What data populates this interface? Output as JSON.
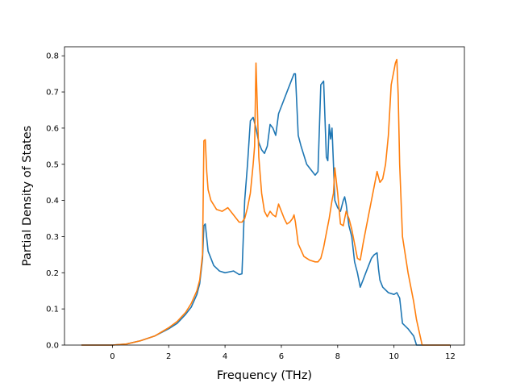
{
  "chart_data": {
    "type": "line",
    "title": "",
    "xlabel": "Frequency (THz)",
    "ylabel": "Partial Density of States",
    "xlim": [
      -1.7,
      12.5
    ],
    "ylim": [
      0,
      0.825
    ],
    "xticks": [
      0,
      2,
      4,
      6,
      8,
      10,
      12
    ],
    "yticks": [
      0.0,
      0.1,
      0.2,
      0.3,
      0.4,
      0.5,
      0.6,
      0.7,
      0.8
    ],
    "grid": false,
    "legend": "none",
    "series": [
      {
        "color": "#1f77b4",
        "x": [
          -1.1,
          0.0,
          0.5,
          1.0,
          1.5,
          2.0,
          2.3,
          2.6,
          2.8,
          3.0,
          3.1,
          3.2,
          3.25,
          3.3,
          3.4,
          3.6,
          3.8,
          4.0,
          4.3,
          4.5,
          4.6,
          4.7,
          4.8,
          4.9,
          5.0,
          5.1,
          5.2,
          5.3,
          5.4,
          5.5,
          5.6,
          5.7,
          5.8,
          5.9,
          6.0,
          6.2,
          6.4,
          6.45,
          6.5,
          6.6,
          6.7,
          6.9,
          7.1,
          7.2,
          7.3,
          7.4,
          7.5,
          7.6,
          7.65,
          7.7,
          7.75,
          7.8,
          7.85,
          7.9,
          8.0,
          8.1,
          8.2,
          8.25,
          8.3,
          8.4,
          8.5,
          8.6,
          8.7,
          8.8,
          8.9,
          9.0,
          9.1,
          9.2,
          9.3,
          9.4,
          9.45,
          9.5,
          9.6,
          9.8,
          10.0,
          10.1,
          10.2,
          10.3,
          10.5,
          10.7,
          10.8,
          11.0,
          12.0
        ],
        "y": [
          0.0,
          0.0,
          0.003,
          0.012,
          0.025,
          0.045,
          0.06,
          0.085,
          0.105,
          0.14,
          0.17,
          0.24,
          0.33,
          0.335,
          0.26,
          0.22,
          0.205,
          0.2,
          0.205,
          0.195,
          0.197,
          0.4,
          0.5,
          0.62,
          0.63,
          0.6,
          0.56,
          0.54,
          0.53,
          0.55,
          0.61,
          0.6,
          0.58,
          0.64,
          0.66,
          0.7,
          0.74,
          0.75,
          0.75,
          0.58,
          0.55,
          0.5,
          0.48,
          0.47,
          0.48,
          0.72,
          0.73,
          0.52,
          0.51,
          0.61,
          0.57,
          0.6,
          0.5,
          0.4,
          0.38,
          0.37,
          0.4,
          0.41,
          0.39,
          0.33,
          0.3,
          0.23,
          0.2,
          0.16,
          0.18,
          0.2,
          0.22,
          0.24,
          0.25,
          0.255,
          0.21,
          0.18,
          0.16,
          0.145,
          0.14,
          0.145,
          0.13,
          0.06,
          0.045,
          0.025,
          0.0,
          0.0,
          0.0
        ]
      },
      {
        "color": "#ff7f0e",
        "x": [
          -1.1,
          0.0,
          0.5,
          1.0,
          1.5,
          2.0,
          2.3,
          2.6,
          2.8,
          3.0,
          3.1,
          3.2,
          3.25,
          3.3,
          3.35,
          3.4,
          3.5,
          3.7,
          3.9,
          4.1,
          4.3,
          4.5,
          4.6,
          4.7,
          4.8,
          4.9,
          5.0,
          5.05,
          5.1,
          5.15,
          5.2,
          5.3,
          5.4,
          5.5,
          5.6,
          5.7,
          5.8,
          5.9,
          6.0,
          6.1,
          6.2,
          6.3,
          6.4,
          6.45,
          6.5,
          6.6,
          6.8,
          7.0,
          7.2,
          7.3,
          7.4,
          7.5,
          7.6,
          7.7,
          7.8,
          7.85,
          7.9,
          8.0,
          8.1,
          8.2,
          8.25,
          8.3,
          8.4,
          8.5,
          8.6,
          8.7,
          8.8,
          8.9,
          9.0,
          9.2,
          9.3,
          9.4,
          9.5,
          9.6,
          9.7,
          9.8,
          9.9,
          10.0,
          10.05,
          10.1,
          10.15,
          10.2,
          10.3,
          10.5,
          10.7,
          10.8,
          11.0,
          12.0
        ],
        "y": [
          0.0,
          0.0,
          0.003,
          0.012,
          0.025,
          0.048,
          0.065,
          0.09,
          0.115,
          0.15,
          0.18,
          0.25,
          0.565,
          0.568,
          0.48,
          0.43,
          0.4,
          0.375,
          0.37,
          0.38,
          0.36,
          0.34,
          0.34,
          0.35,
          0.38,
          0.42,
          0.5,
          0.55,
          0.78,
          0.65,
          0.52,
          0.42,
          0.37,
          0.355,
          0.37,
          0.36,
          0.355,
          0.39,
          0.37,
          0.35,
          0.335,
          0.34,
          0.35,
          0.36,
          0.34,
          0.28,
          0.245,
          0.235,
          0.23,
          0.23,
          0.24,
          0.27,
          0.31,
          0.35,
          0.4,
          0.42,
          0.49,
          0.42,
          0.335,
          0.33,
          0.35,
          0.37,
          0.35,
          0.32,
          0.28,
          0.24,
          0.235,
          0.28,
          0.32,
          0.4,
          0.44,
          0.48,
          0.45,
          0.46,
          0.5,
          0.58,
          0.72,
          0.76,
          0.78,
          0.79,
          0.69,
          0.5,
          0.3,
          0.2,
          0.12,
          0.07,
          0.0,
          0.0
        ]
      }
    ]
  }
}
